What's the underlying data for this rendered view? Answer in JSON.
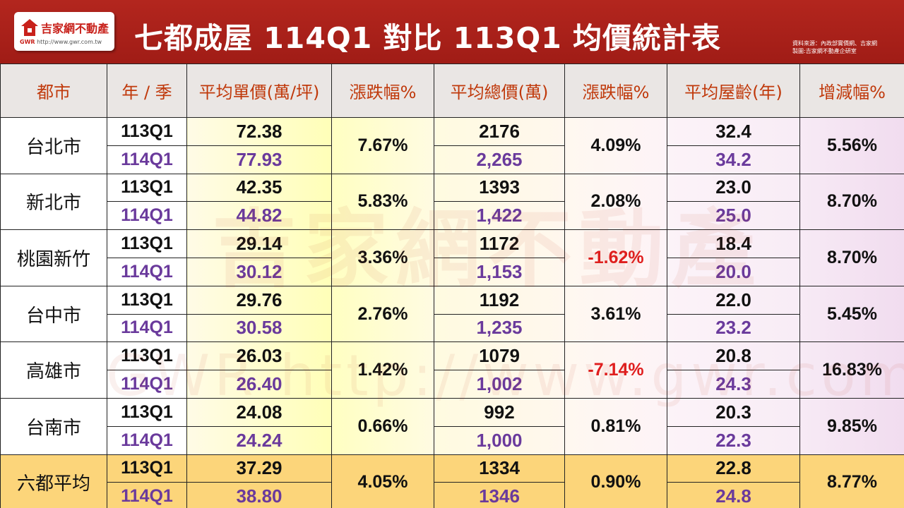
{
  "header": {
    "logo_text": "吉家網不動產",
    "logo_prefix": "GWR",
    "logo_url": "http://www.gwr.com.tw",
    "title": "七都成屋  114Q1 對比 113Q1 均價統計表",
    "source_line1": "資料來源：內政部實價網、吉家網",
    "source_line2": "製圖:吉家網不動產企研室"
  },
  "columns": [
    "都市",
    "年 / 季",
    "平均單價(萬/坪)",
    "漲跌幅%",
    "平均總價(萬)",
    "漲跌幅%",
    "平均屋齡(年)",
    "增減幅%"
  ],
  "rows": [
    {
      "city": "台北市",
      "q_old": "113Q1",
      "q_new": "114Q1",
      "unit_old": "72.38",
      "unit_new": "77.93",
      "unit_chg": "7.67%",
      "total_old": "2176",
      "total_new": "2,265",
      "total_chg": "4.09%",
      "total_chg_neg": false,
      "age_old": "32.4",
      "age_new": "34.2",
      "age_chg": "5.56%"
    },
    {
      "city": "新北市",
      "q_old": "113Q1",
      "q_new": "114Q1",
      "unit_old": "42.35",
      "unit_new": "44.82",
      "unit_chg": "5.83%",
      "total_old": "1393",
      "total_new": "1,422",
      "total_chg": "2.08%",
      "total_chg_neg": false,
      "age_old": "23.0",
      "age_new": "25.0",
      "age_chg": "8.70%"
    },
    {
      "city": "桃園新竹",
      "q_old": "113Q1",
      "q_new": "114Q1",
      "unit_old": "29.14",
      "unit_new": "30.12",
      "unit_chg": "3.36%",
      "total_old": "1172",
      "total_new": "1,153",
      "total_chg": "-1.62%",
      "total_chg_neg": true,
      "age_old": "18.4",
      "age_new": "20.0",
      "age_chg": "8.70%"
    },
    {
      "city": "台中市",
      "q_old": "113Q1",
      "q_new": "114Q1",
      "unit_old": "29.76",
      "unit_new": "30.58",
      "unit_chg": "2.76%",
      "total_old": "1192",
      "total_new": "1,235",
      "total_chg": "3.61%",
      "total_chg_neg": false,
      "age_old": "22.0",
      "age_new": "23.2",
      "age_chg": "5.45%"
    },
    {
      "city": "高雄市",
      "q_old": "113Q1",
      "q_new": "114Q1",
      "unit_old": "26.03",
      "unit_new": "26.40",
      "unit_chg": "1.42%",
      "total_old": "1079",
      "total_new": "1,002",
      "total_chg": "-7.14%",
      "total_chg_neg": true,
      "age_old": "20.8",
      "age_new": "24.3",
      "age_chg": "16.83%"
    },
    {
      "city": "台南市",
      "q_old": "113Q1",
      "q_new": "114Q1",
      "unit_old": "24.08",
      "unit_new": "24.24",
      "unit_chg": "0.66%",
      "total_old": "992",
      "total_new": "1,000",
      "total_chg": "0.81%",
      "total_chg_neg": false,
      "age_old": "20.3",
      "age_new": "22.3",
      "age_chg": "9.85%"
    },
    {
      "city": "六都平均",
      "q_old": "113Q1",
      "q_new": "114Q1",
      "unit_old": "37.29",
      "unit_new": "38.80",
      "unit_chg": "4.05%",
      "total_old": "1334",
      "total_new": "1346",
      "total_chg": "0.90%",
      "total_chg_neg": false,
      "age_old": "22.8",
      "age_new": "24.8",
      "age_chg": "8.77%"
    }
  ],
  "watermark": {
    "brand": "吉家網不動產",
    "url": "GWR  http://www.gwr.com.tw"
  },
  "colors": {
    "header_red": "#b3261e",
    "header_text_col": "#c0390b",
    "new_year_purple": "#6a3a9c",
    "negative_red": "#e01e1e",
    "average_row_gold": "#fcd57a"
  }
}
